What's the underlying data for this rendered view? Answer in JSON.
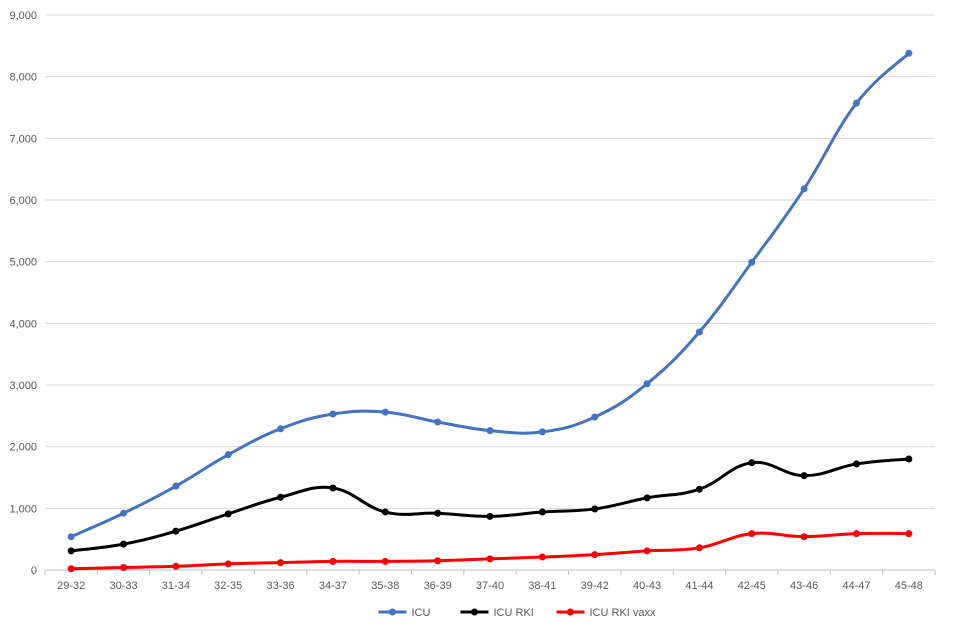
{
  "chart_data": {
    "type": "line",
    "title": "",
    "xlabel": "",
    "ylabel": "",
    "categories": [
      "29-32",
      "30-33",
      "31-34",
      "32-35",
      "33-36",
      "34-37",
      "35-38",
      "36-39",
      "37-40",
      "38-41",
      "39-42",
      "40-43",
      "41-44",
      "42-45",
      "43-46",
      "44-47",
      "45-48"
    ],
    "y_ticks": [
      "0",
      "1,000",
      "2,000",
      "3,000",
      "4,000",
      "5,000",
      "6,000",
      "7,000",
      "8,000",
      "9,000"
    ],
    "ylim": [
      0,
      9000
    ],
    "grid": true,
    "legend_position": "bottom",
    "series": [
      {
        "name": "ICU",
        "color": "#4472C4",
        "values": [
          540,
          920,
          1360,
          1870,
          2290,
          2530,
          2560,
          2400,
          2260,
          2240,
          2480,
          3020,
          3860,
          4990,
          6180,
          7570,
          8380
        ]
      },
      {
        "name": "ICU RKI",
        "color": "#000000",
        "values": [
          310,
          420,
          630,
          910,
          1180,
          1330,
          940,
          920,
          870,
          940,
          990,
          1170,
          1310,
          1740,
          1530,
          1720,
          1800
        ]
      },
      {
        "name": "ICU RKI vaxx",
        "color": "#FF0000",
        "values": [
          20,
          40,
          60,
          100,
          120,
          140,
          140,
          150,
          180,
          210,
          250,
          310,
          360,
          590,
          540,
          590,
          590
        ]
      }
    ]
  }
}
